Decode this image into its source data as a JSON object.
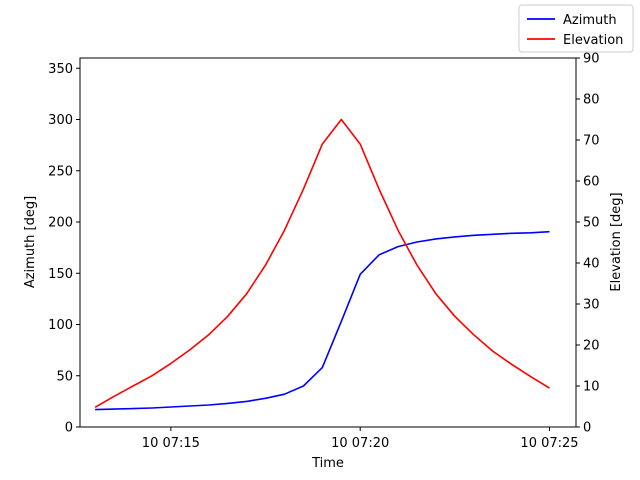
{
  "chart_data": {
    "type": "line",
    "xlabel": "Time",
    "ylabel_left": "Azimuth [deg]",
    "ylabel_right": "Elevation [deg]",
    "x_time_labels": [
      "10 07:15",
      "10 07:20",
      "10 07:25"
    ],
    "x_time_ticks_minutes": [
      15,
      20,
      25
    ],
    "xlim_minutes": [
      12.6,
      25.7
    ],
    "ylim_left": [
      0,
      360
    ],
    "ylim_right": [
      0,
      90
    ],
    "yticks_left": [
      0,
      50,
      100,
      150,
      200,
      250,
      300,
      350
    ],
    "yticks_right": [
      0,
      10,
      20,
      30,
      40,
      50,
      60,
      70,
      80,
      90
    ],
    "grid": false,
    "legend_position": "top-right",
    "x_minutes": [
      13.0,
      13.5,
      14.0,
      14.5,
      15.0,
      15.5,
      16.0,
      16.5,
      17.0,
      17.5,
      18.0,
      18.5,
      19.0,
      19.5,
      20.0,
      20.5,
      21.0,
      21.5,
      22.0,
      22.5,
      23.0,
      23.5,
      24.0,
      24.5,
      25.0
    ],
    "series": [
      {
        "name": "Azimuth",
        "axis": "left",
        "color": "#0000ff",
        "values": [
          17,
          17.5,
          18,
          18.5,
          19.5,
          20.5,
          21.5,
          23,
          25,
          28,
          32,
          40,
          58,
          103,
          149,
          168,
          176,
          180.5,
          183.5,
          185.5,
          187,
          188,
          189,
          189.5,
          190.5
        ]
      },
      {
        "name": "Elevation",
        "axis": "right",
        "color": "#ff0000",
        "values": [
          4.8,
          7.5,
          10,
          12.5,
          15.5,
          18.8,
          22.5,
          27,
          32.5,
          39.5,
          48,
          58,
          69,
          75,
          69,
          58,
          48,
          39.5,
          32.5,
          27,
          22.5,
          18.5,
          15.3,
          12.3,
          9.5
        ]
      }
    ]
  }
}
